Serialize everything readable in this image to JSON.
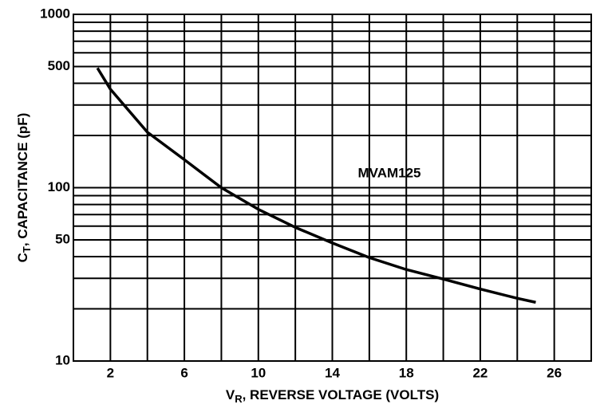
{
  "chart_data": {
    "type": "line",
    "annotation": "MVAM125",
    "x_label": {
      "main": "V",
      "sub": "R",
      "rest": ", REVERSE VOLTAGE (VOLTS)"
    },
    "y_label": {
      "main": "C",
      "sub": "T",
      "rest": ", CAPACITANCE (pF)"
    },
    "xlim": [
      0,
      28
    ],
    "xticks": [
      2,
      6,
      10,
      14,
      18,
      22,
      26
    ],
    "ylim": [
      10,
      1000
    ],
    "yticks": [
      10,
      50,
      100,
      500,
      1000
    ],
    "log_y": true,
    "grid": true,
    "series": [
      {
        "name": "MVAM125",
        "color": "#000000",
        "x": [
          1.3,
          2,
          4,
          6,
          8,
          10,
          12,
          14,
          16,
          18,
          20,
          22,
          24,
          25
        ],
        "values": [
          490,
          370,
          209,
          145,
          100,
          75,
          59,
          48,
          39.5,
          33.7,
          29.7,
          26,
          23,
          21.8
        ]
      }
    ]
  }
}
